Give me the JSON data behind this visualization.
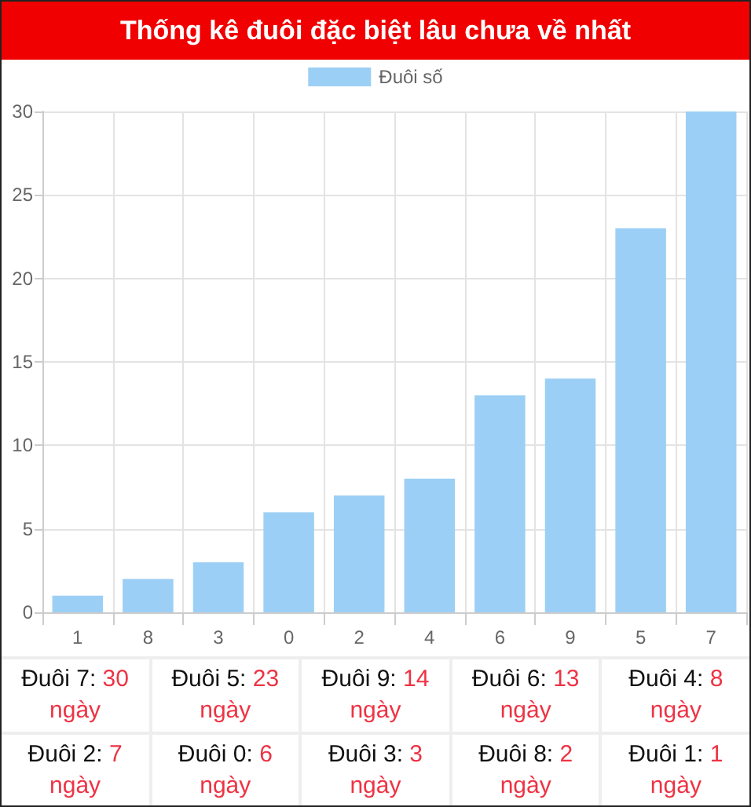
{
  "chart_data": {
    "type": "bar",
    "title": "Thống kê đuôi đặc biệt lâu chưa về nhất",
    "categories": [
      "1",
      "8",
      "3",
      "0",
      "2",
      "4",
      "6",
      "9",
      "5",
      "7"
    ],
    "series": [
      {
        "name": "Đuôi số",
        "color": "#9ccff5",
        "values": [
          1,
          2,
          3,
          6,
          7,
          8,
          13,
          14,
          23,
          30
        ]
      }
    ],
    "value_labels": [
      "Đuôi 1: 1 ngày",
      "Đuôi 8: 2 ngày",
      "Đuôi 3: 3 ngày",
      "Đuôi 0: 6 ngày",
      "Đuôi 2: 7 ngày",
      "Đuôi 4: 8 ngày",
      "Đuôi 6: 13 ngày",
      "Đuôi 9: 14 ngày",
      "Đuôi 5: 23 ngày",
      "Đuôi 7: 30 ngày"
    ],
    "ylim": [
      0,
      30
    ],
    "yticks": [
      0,
      5,
      10,
      15,
      20,
      25,
      30
    ],
    "grid": true,
    "legend": "top"
  }
}
